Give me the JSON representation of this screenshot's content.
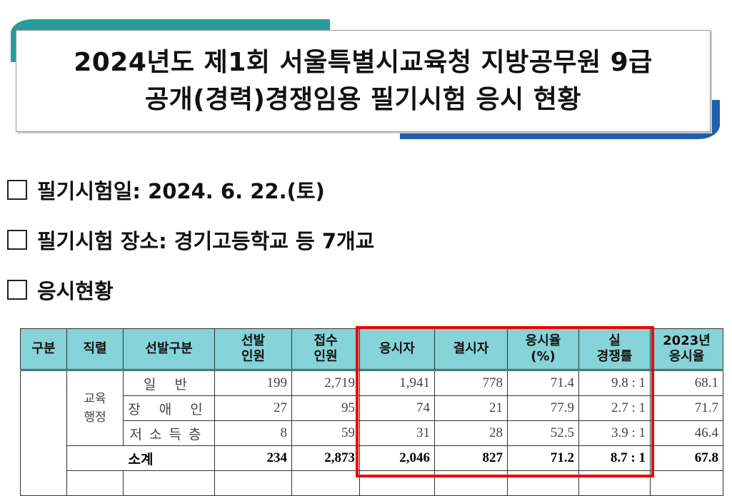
{
  "header": {
    "title_lines": [
      "2024년도 제1회 서울특별시교육청 지방공무원 9급",
      "공개(경력)경쟁임용 필기시험 응시 현황"
    ]
  },
  "bullets": [
    "필기시험일: 2024. 6. 22.(토)",
    "필기시험 장소: 경기고등학교 등 7개교",
    "응시현황"
  ],
  "table": {
    "headers": [
      [
        "구분"
      ],
      [
        "직렬"
      ],
      [
        "선발구분"
      ],
      [
        "선발",
        "인원"
      ],
      [
        "접수",
        "인원"
      ],
      [
        "응시자"
      ],
      [
        "결시자"
      ],
      [
        "응시율",
        "(%)"
      ],
      [
        "실",
        "경쟁률"
      ],
      [
        "2023년",
        "응시율"
      ]
    ],
    "group": [
      "교육",
      "행정"
    ],
    "rows": [
      [
        "일 반",
        "199",
        "2,719",
        "1,941",
        "778",
        "71.4",
        "9.8 : 1",
        "68.1"
      ],
      [
        "장 애 인",
        "27",
        "95",
        "74",
        "21",
        "77.9",
        "2.7 : 1",
        "71.7"
      ],
      [
        "저소득층",
        "8",
        "59",
        "31",
        "28",
        "52.5",
        "3.9 : 1",
        "46.4"
      ],
      [
        "소계",
        "234",
        "2,873",
        "2,046",
        "827",
        "71.2",
        "8.7 : 1",
        "67.8"
      ]
    ]
  }
}
